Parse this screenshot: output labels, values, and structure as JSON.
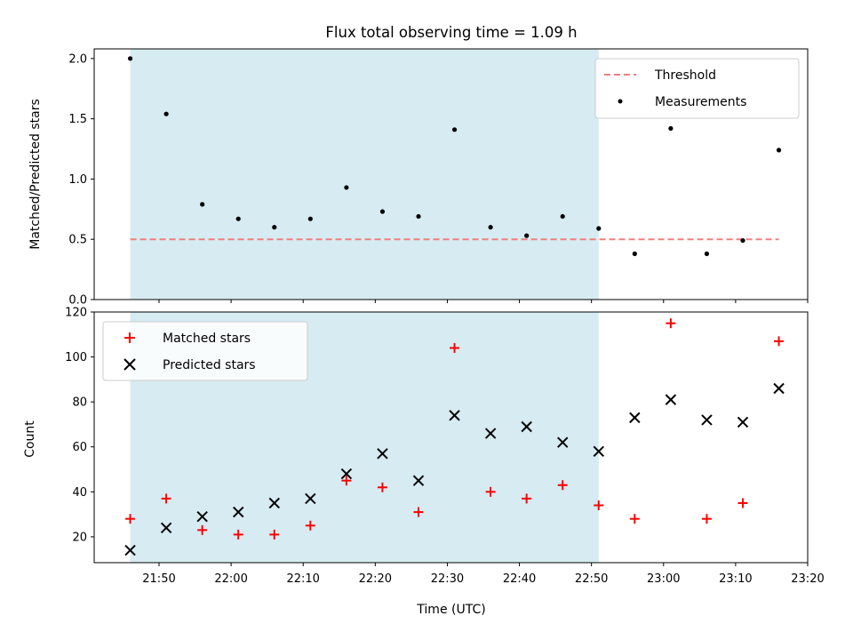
{
  "chart_data": [
    {
      "type": "scatter",
      "title": "Flux total observing time = 1.09 h",
      "xlabel": "",
      "ylabel": "Matched/Predicted stars",
      "ylim": [
        0,
        2.08
      ],
      "yticks": [
        "0.0",
        "0.5",
        "1.0",
        "1.5",
        "2.0"
      ],
      "x_tick_labels_visible": false,
      "shaded_region": {
        "from": "21:46",
        "to": "22:51",
        "color": "#add8e6"
      },
      "colors": {
        "threshold": "#f08080",
        "measurements": "#000000",
        "shade": "#add8e6"
      },
      "threshold": {
        "label": "Threshold",
        "y": 0.5,
        "from": "21:46",
        "to": "23:16",
        "style": "dashed"
      },
      "series": [
        {
          "name": "Measurements",
          "x": [
            "21:46",
            "21:51",
            "21:56",
            "22:01",
            "22:06",
            "22:11",
            "22:16",
            "22:21",
            "22:26",
            "22:31",
            "22:36",
            "22:41",
            "22:46",
            "22:51",
            "22:56",
            "23:01",
            "23:06",
            "23:11",
            "23:16"
          ],
          "values": [
            2.0,
            1.54,
            0.79,
            0.67,
            0.6,
            0.67,
            0.93,
            0.73,
            0.69,
            1.41,
            0.6,
            0.53,
            0.69,
            0.59,
            0.38,
            1.42,
            0.38,
            0.49,
            1.24
          ]
        }
      ],
      "legend": {
        "position": "top-right",
        "entries": [
          "Threshold",
          "Measurements"
        ]
      }
    },
    {
      "type": "scatter",
      "title": "",
      "xlabel": "Time (UTC)",
      "ylabel": "Count",
      "ylim": [
        8.5,
        120
      ],
      "yticks": [
        "20",
        "40",
        "60",
        "80",
        "100",
        "120"
      ],
      "xlim": [
        "21:41",
        "23:20"
      ],
      "xticks": [
        "21:50",
        "22:00",
        "22:10",
        "22:20",
        "22:30",
        "22:40",
        "22:50",
        "23:00",
        "23:10",
        "23:20"
      ],
      "shaded_region": {
        "from": "21:46",
        "to": "22:51",
        "color": "#add8e6"
      },
      "colors": {
        "matched": "#ff0000",
        "predicted": "#000000"
      },
      "series": [
        {
          "name": "Matched stars",
          "marker": "plus",
          "x": [
            "21:46",
            "21:51",
            "21:56",
            "22:01",
            "22:06",
            "22:11",
            "22:16",
            "22:21",
            "22:26",
            "22:31",
            "22:36",
            "22:41",
            "22:46",
            "22:51",
            "22:56",
            "23:01",
            "23:06",
            "23:11",
            "23:16"
          ],
          "values": [
            28,
            37,
            23,
            21,
            21,
            25,
            45,
            42,
            31,
            104,
            40,
            37,
            43,
            34,
            28,
            115,
            28,
            35,
            107
          ]
        },
        {
          "name": "Predicted stars",
          "marker": "x",
          "x": [
            "21:46",
            "21:51",
            "21:56",
            "22:01",
            "22:06",
            "22:11",
            "22:16",
            "22:21",
            "22:26",
            "22:31",
            "22:36",
            "22:41",
            "22:46",
            "22:51",
            "22:56",
            "23:01",
            "23:06",
            "23:11",
            "23:16"
          ],
          "values": [
            14,
            24,
            29,
            31,
            35,
            37,
            48,
            57,
            45,
            74,
            66,
            69,
            62,
            58,
            73,
            81,
            72,
            71,
            86
          ]
        }
      ],
      "legend": {
        "position": "top-left",
        "entries": [
          "Matched stars",
          "Predicted stars"
        ]
      }
    }
  ]
}
